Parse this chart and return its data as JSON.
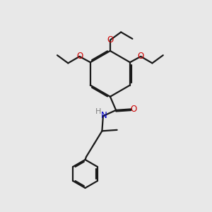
{
  "bg_color": "#e8e8e8",
  "bond_color": "#1a1a1a",
  "oxygen_color": "#cc0000",
  "nitrogen_color": "#0000cc",
  "hydrogen_color": "#808080",
  "line_width": 1.6,
  "dbo": 0.055,
  "xlim": [
    0,
    10
  ],
  "ylim": [
    0,
    10
  ]
}
